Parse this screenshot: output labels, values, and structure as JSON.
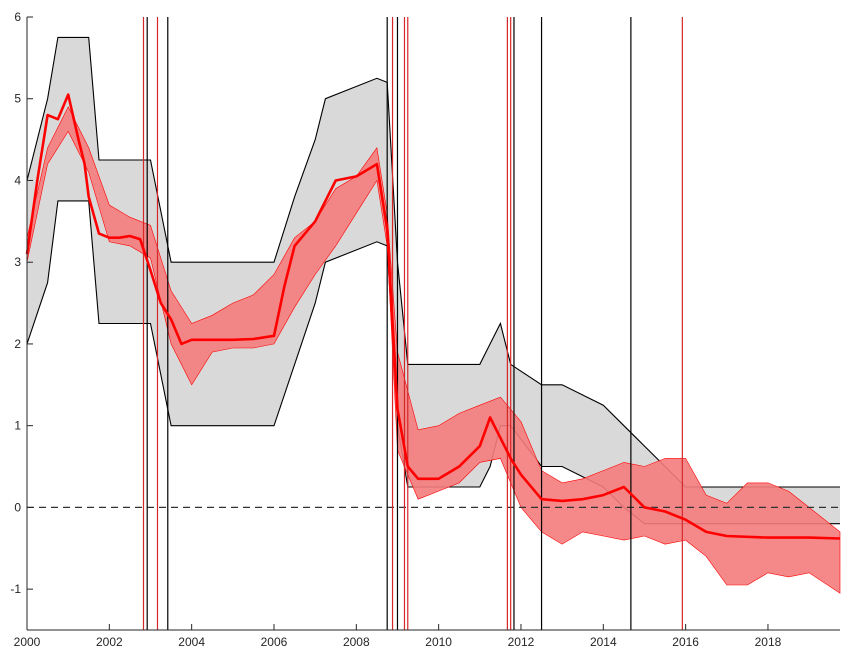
{
  "chart_data": {
    "type": "line",
    "title": "",
    "xlabel": "",
    "ylabel": "",
    "xlim": [
      2000,
      2019.75
    ],
    "ylim": [
      -1.5,
      6
    ],
    "grid": false,
    "legend": "none",
    "x_ticks": [
      2000,
      2002,
      2004,
      2006,
      2008,
      2010,
      2012,
      2014,
      2016,
      2018
    ],
    "x_tick_labels": [
      "2000",
      "2002",
      "2004",
      "2006",
      "2008",
      "2010",
      "2012",
      "2014",
      "2016",
      "2018"
    ],
    "y_ticks": [
      -1,
      0,
      1,
      2,
      3,
      4,
      5,
      6
    ],
    "y_tick_labels": [
      "-1",
      "0",
      "1",
      "2",
      "3",
      "4",
      "5",
      "6"
    ],
    "reference_line": {
      "y": 0,
      "style": "dashed",
      "color": "#333333"
    },
    "colors": {
      "main": "#ff0000",
      "band": "#f47c7c",
      "outer_band": "#d9d9d9",
      "outer_edge": "#000000",
      "vline_red": "#d62728",
      "vline_black": "#000000"
    },
    "series": [
      {
        "role": "main-line",
        "x": [
          2000.0,
          2000.25,
          2000.5,
          2000.75,
          2001.0,
          2001.25,
          2001.4,
          2001.5,
          2001.75,
          2002.0,
          2002.25,
          2002.5,
          2002.75,
          2003.0,
          2003.25,
          2003.5,
          2003.75,
          2004.0,
          2004.5,
          2005.0,
          2005.5,
          2006.0,
          2006.25,
          2006.5,
          2007.0,
          2007.5,
          2008.0,
          2008.5,
          2008.75,
          2009.0,
          2009.25,
          2009.5,
          2010.0,
          2010.5,
          2011.0,
          2011.25,
          2011.5,
          2011.75,
          2012.0,
          2012.5,
          2013.0,
          2013.5,
          2014.0,
          2014.5,
          2015.0,
          2015.5,
          2016.0,
          2016.5,
          2017.0,
          2018.0,
          2019.0,
          2019.75
        ],
        "y": [
          3.1,
          4.0,
          4.8,
          4.75,
          5.05,
          4.5,
          4.2,
          3.8,
          3.35,
          3.3,
          3.3,
          3.32,
          3.28,
          2.9,
          2.5,
          2.3,
          2.0,
          2.05,
          2.05,
          2.05,
          2.06,
          2.1,
          2.7,
          3.2,
          3.5,
          4.0,
          4.05,
          4.2,
          3.4,
          1.2,
          0.5,
          0.35,
          0.35,
          0.5,
          0.75,
          1.1,
          0.85,
          0.6,
          0.4,
          0.1,
          0.08,
          0.1,
          0.15,
          0.25,
          0.0,
          -0.05,
          -0.15,
          -0.3,
          -0.35,
          -0.37,
          -0.37,
          -0.38
        ]
      },
      {
        "role": "inner-band-upper",
        "x": [
          2000.0,
          2000.5,
          2001.0,
          2001.5,
          2002.0,
          2002.5,
          2003.0,
          2003.5,
          2004.0,
          2004.5,
          2005.0,
          2005.5,
          2006.0,
          2006.5,
          2007.0,
          2007.5,
          2008.0,
          2008.5,
          2008.75,
          2009.0,
          2009.5,
          2010.0,
          2010.5,
          2011.0,
          2011.5,
          2012.0,
          2012.5,
          2013.0,
          2013.5,
          2014.0,
          2014.5,
          2015.0,
          2015.5,
          2016.0,
          2016.5,
          2017.0,
          2017.5,
          2018.0,
          2018.5,
          2019.0,
          2019.75
        ],
        "y": [
          3.3,
          4.4,
          4.9,
          4.4,
          3.7,
          3.55,
          3.45,
          2.65,
          2.25,
          2.35,
          2.5,
          2.6,
          2.85,
          3.3,
          3.5,
          3.9,
          4.05,
          4.4,
          3.6,
          1.9,
          0.95,
          1.0,
          1.15,
          1.25,
          1.35,
          1.05,
          0.45,
          0.3,
          0.35,
          0.45,
          0.55,
          0.5,
          0.6,
          0.6,
          0.15,
          0.05,
          0.3,
          0.3,
          0.2,
          0.0,
          -0.3
        ]
      },
      {
        "role": "inner-band-lower",
        "x": [
          2000.0,
          2000.5,
          2001.0,
          2001.5,
          2002.0,
          2002.5,
          2003.0,
          2003.5,
          2004.0,
          2004.5,
          2005.0,
          2005.5,
          2006.0,
          2006.5,
          2007.0,
          2007.5,
          2008.0,
          2008.5,
          2008.75,
          2009.0,
          2009.5,
          2010.0,
          2010.5,
          2011.0,
          2011.5,
          2012.0,
          2012.5,
          2013.0,
          2013.5,
          2014.0,
          2014.5,
          2015.0,
          2015.5,
          2016.0,
          2016.5,
          2017.0,
          2017.5,
          2018.0,
          2018.5,
          2019.0,
          2019.75
        ],
        "y": [
          3.0,
          4.2,
          4.6,
          4.1,
          3.25,
          3.2,
          3.05,
          2.0,
          1.5,
          1.9,
          1.95,
          1.95,
          2.0,
          2.45,
          2.85,
          3.2,
          3.6,
          4.0,
          3.2,
          0.7,
          0.1,
          0.2,
          0.3,
          0.55,
          0.6,
          0.0,
          -0.3,
          -0.45,
          -0.3,
          -0.35,
          -0.4,
          -0.35,
          -0.45,
          -0.4,
          -0.6,
          -0.95,
          -0.95,
          -0.8,
          -0.85,
          -0.8,
          -1.05
        ]
      },
      {
        "role": "outer-band-upper",
        "x": [
          2000.0,
          2000.5,
          2000.75,
          2001.5,
          2001.75,
          2003.0,
          2003.5,
          2006.0,
          2006.5,
          2007.0,
          2007.25,
          2008.5,
          2008.75,
          2009.0,
          2009.25,
          2011.0,
          2011.25,
          2011.5,
          2011.75,
          2012.5,
          2013.0,
          2014.0,
          2014.5,
          2015.0,
          2015.5,
          2016.0,
          2016.5,
          2019.75
        ],
        "y": [
          4.0,
          5.0,
          5.75,
          5.75,
          4.25,
          4.25,
          3.0,
          3.0,
          3.8,
          4.5,
          5.0,
          5.25,
          5.2,
          3.0,
          1.75,
          1.75,
          2.0,
          2.25,
          1.75,
          1.5,
          1.5,
          1.25,
          1.0,
          0.75,
          0.5,
          0.25,
          0.25,
          0.25
        ]
      },
      {
        "role": "outer-band-lower",
        "x": [
          2000.0,
          2000.5,
          2000.75,
          2001.5,
          2001.75,
          2003.0,
          2003.5,
          2006.0,
          2006.5,
          2007.0,
          2007.25,
          2008.5,
          2008.75,
          2009.0,
          2009.25,
          2011.0,
          2011.25,
          2011.5,
          2011.75,
          2012.5,
          2013.0,
          2014.0,
          2014.5,
          2015.0,
          2015.5,
          2016.0,
          2016.5,
          2019.75
        ],
        "y": [
          2.0,
          2.75,
          3.75,
          3.75,
          2.25,
          2.25,
          1.0,
          1.0,
          1.75,
          2.5,
          3.0,
          3.25,
          3.2,
          1.0,
          0.25,
          0.25,
          0.5,
          1.0,
          1.0,
          0.5,
          0.5,
          0.25,
          0.0,
          -0.2,
          -0.2,
          -0.2,
          -0.2,
          -0.2
        ]
      }
    ],
    "vlines_red": [
      2002.83,
      2003.17,
      2008.88,
      2009.17,
      2009.25,
      2011.67,
      2011.75,
      2015.92
    ],
    "vlines_black": [
      2002.92,
      2003.42,
      2008.75,
      2009.0,
      2011.83,
      2012.5,
      2014.67
    ]
  }
}
